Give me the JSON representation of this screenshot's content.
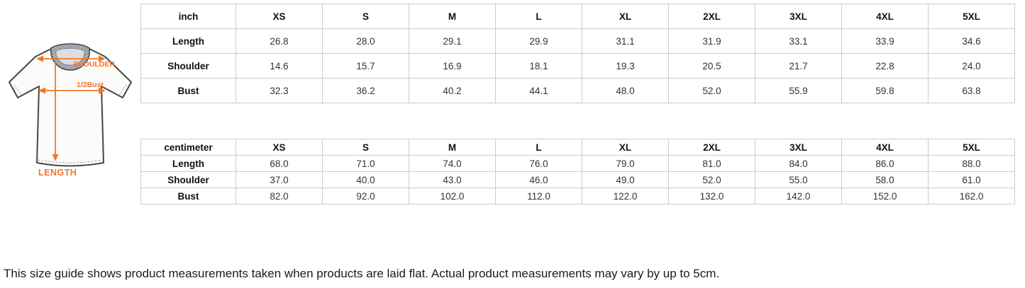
{
  "figure": {
    "labels": {
      "shoulder": "SHOULDER",
      "half_bust": "1/2Bust",
      "length": "LENGTH"
    },
    "accent_color": "#F0782A"
  },
  "tables": [
    {
      "unit": "inch",
      "sizes": [
        "XS",
        "S",
        "M",
        "L",
        "XL",
        "2XL",
        "3XL",
        "4XL",
        "5XL"
      ],
      "rows": [
        {
          "label": "Length",
          "values": [
            "26.8",
            "28.0",
            "29.1",
            "29.9",
            "31.1",
            "31.9",
            "33.1",
            "33.9",
            "34.6"
          ]
        },
        {
          "label": "Shoulder",
          "values": [
            "14.6",
            "15.7",
            "16.9",
            "18.1",
            "19.3",
            "20.5",
            "21.7",
            "22.8",
            "24.0"
          ]
        },
        {
          "label": "Bust",
          "values": [
            "32.3",
            "36.2",
            "40.2",
            "44.1",
            "48.0",
            "52.0",
            "55.9",
            "59.8",
            "63.8"
          ]
        }
      ]
    },
    {
      "unit": "centimeter",
      "sizes": [
        "XS",
        "S",
        "M",
        "L",
        "XL",
        "2XL",
        "3XL",
        "4XL",
        "5XL"
      ],
      "rows": [
        {
          "label": "Length",
          "values": [
            "68.0",
            "71.0",
            "74.0",
            "76.0",
            "79.0",
            "81.0",
            "84.0",
            "86.0",
            "88.0"
          ]
        },
        {
          "label": "Shoulder",
          "values": [
            "37.0",
            "40.0",
            "43.0",
            "46.0",
            "49.0",
            "52.0",
            "55.0",
            "58.0",
            "61.0"
          ]
        },
        {
          "label": "Bust",
          "values": [
            "82.0",
            "92.0",
            "102.0",
            "112.0",
            "122.0",
            "132.0",
            "142.0",
            "152.0",
            "162.0"
          ]
        }
      ]
    }
  ],
  "note": "This size guide shows product measurements taken when products are laid flat. Actual product measurements may vary by up to 5cm."
}
